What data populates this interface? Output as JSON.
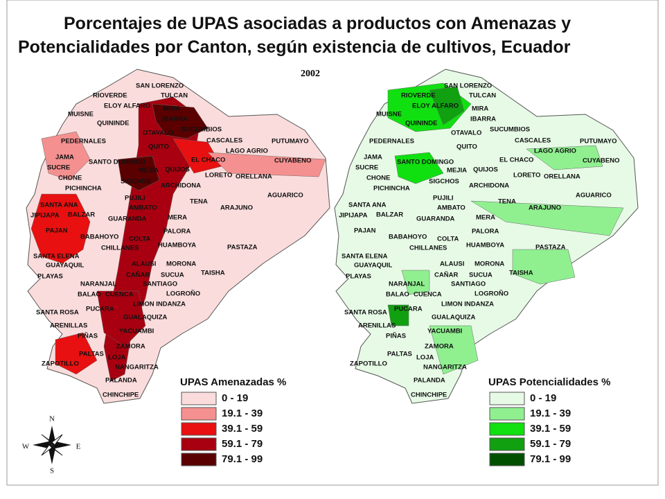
{
  "title_lines": [
    "Porcentajes de UPAS asociadas a productos con Amenazas y",
    "Potencialidades por Canton, según existencia de cultivos, Ecuador"
  ],
  "year": "2002",
  "maps": [
    {
      "labels": [
        "SAN LORENZO",
        "RIOVERDE",
        "TULCAN",
        "ELOY ALFARO",
        "MIRA",
        "MUISNE",
        "IBARRA",
        "QUININDE",
        "OTAVALO",
        "SUCUMBIOS",
        "PEDERNALES",
        "CASCALES",
        "PUTUMAYO",
        "QUITO",
        "LAGO AGRIO",
        "JAMA",
        "SANTO DOMINGO",
        "EL CHACO",
        "CUYABENO",
        "SUCRE",
        "MEJIA",
        "QUIJOS",
        "CHONE",
        "SIGCHOS",
        "LORETO",
        "ORELLANA",
        "PICHINCHA",
        "ARCHIDONA",
        "AGUARICO",
        "PUJILI",
        "TENA",
        "SANTA ANA",
        "AMBATO",
        "ARAJUNO",
        "BALZAR",
        "JIPIJAPA",
        "GUARANDA",
        "MERA",
        "PAJAN",
        "PALORA",
        "BABAHOYO",
        "COLTA",
        "CHILLANES",
        "HUAMBOYA",
        "PASTAZA",
        "SANTA ELENA",
        "ALAUSI",
        "MORONA",
        "GUAYAQUIL",
        "CAÑAR",
        "SUCUA",
        "TAISHA",
        "PLAYAS",
        "NARANJAL",
        "SANTIAGO",
        "BALAO",
        "CUENCA",
        "LOGROÑO",
        "PUCARA",
        "LIMON INDANZA",
        "SANTA ROSA",
        "GUALAQUIZA",
        "ARENILLAS",
        "YACUAMBI",
        "PIÑAS",
        "ZAMORA",
        "PALTAS",
        "LOJA",
        "ZAPOTILLO",
        "NANGARITZA",
        "PALANDA",
        "CHINCHIPE"
      ],
      "legend": {
        "title": "UPAS Amenazadas %",
        "classes": [
          "0 - 19",
          "19.1 - 39",
          "39.1 - 59",
          "59.1 - 79",
          "79.1 - 99"
        ],
        "colors": [
          "#fbdcdc",
          "#f59090",
          "#e81010",
          "#a80010",
          "#5a0000"
        ]
      }
    },
    {
      "labels": [
        "SAN LORENZO",
        "RIOVERDE",
        "TULCAN",
        "ELOY ALFARO",
        "MIRA",
        "MUISNE",
        "IBARRA",
        "QUININDE",
        "OTAVALO",
        "SUCUMBIOS",
        "PEDERNALES",
        "CASCALES",
        "PUTUMAYO",
        "QUITO",
        "LAGO AGRIO",
        "JAMA",
        "SANTO DOMINGO",
        "EL CHACO",
        "CUYABENO",
        "SUCRE",
        "MEJIA",
        "QUIJOS",
        "CHONE",
        "SIGCHOS",
        "LORETO",
        "ORELLANA",
        "PICHINCHA",
        "ARCHIDONA",
        "AGUARICO",
        "PUJILI",
        "TENA",
        "SANTA ANA",
        "AMBATO",
        "ARAJUNO",
        "BALZAR",
        "JIPIJAPA",
        "GUARANDA",
        "MERA",
        "PAJAN",
        "PALORA",
        "BABAHOYO",
        "COLTA",
        "CHILLANES",
        "HUAMBOYA",
        "PASTAZA",
        "SANTA ELENA",
        "ALAUSI",
        "MORONA",
        "GUAYAQUIL",
        "CAÑAR",
        "SUCUA",
        "TAISHA",
        "PLAYAS",
        "NARANJAL",
        "SANTIAGO",
        "BALAO",
        "CUENCA",
        "LOGROÑO",
        "PUCARA",
        "LIMON INDANZA",
        "SANTA ROSA",
        "GUALAQUIZA",
        "ARENILLAS",
        "YACUAMBI",
        "PIÑAS",
        "ZAMORA",
        "PALTAS",
        "LOJA",
        "ZAPOTILLO",
        "NANGARITZA",
        "PALANDA",
        "CHINCHIPE"
      ],
      "legend": {
        "title": "UPAS Potencialidades %",
        "classes": [
          "0 - 19",
          "19.1 - 39",
          "39.1 - 59",
          "59.1 - 79",
          "79.1 - 99"
        ],
        "colors": [
          "#e6fae6",
          "#90f090",
          "#10e010",
          "#10a010",
          "#005000"
        ]
      }
    }
  ],
  "compass": {
    "n": "N",
    "s": "S",
    "w": "W",
    "e": "E"
  }
}
